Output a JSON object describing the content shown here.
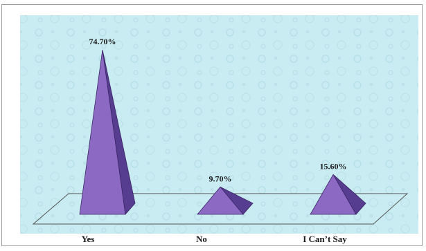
{
  "chart_data": {
    "type": "bar",
    "style": "3d-pyramid",
    "categories": [
      "Yes",
      "No",
      "I Can’t Say"
    ],
    "values": [
      74.7,
      9.7,
      15.6
    ],
    "data_labels": [
      "74.70%",
      "9.70%",
      "15.60%"
    ],
    "ylim": [
      0,
      80
    ],
    "grid": false,
    "legend": "none",
    "colors": {
      "pyramid_front": "#8c69c2",
      "pyramid_side": "#573d8f",
      "pyramid_edge": "#3a2466",
      "plot_background": "#c9ecf2",
      "floor_line": "#555555",
      "frame_border": "#9a9a9a"
    }
  }
}
